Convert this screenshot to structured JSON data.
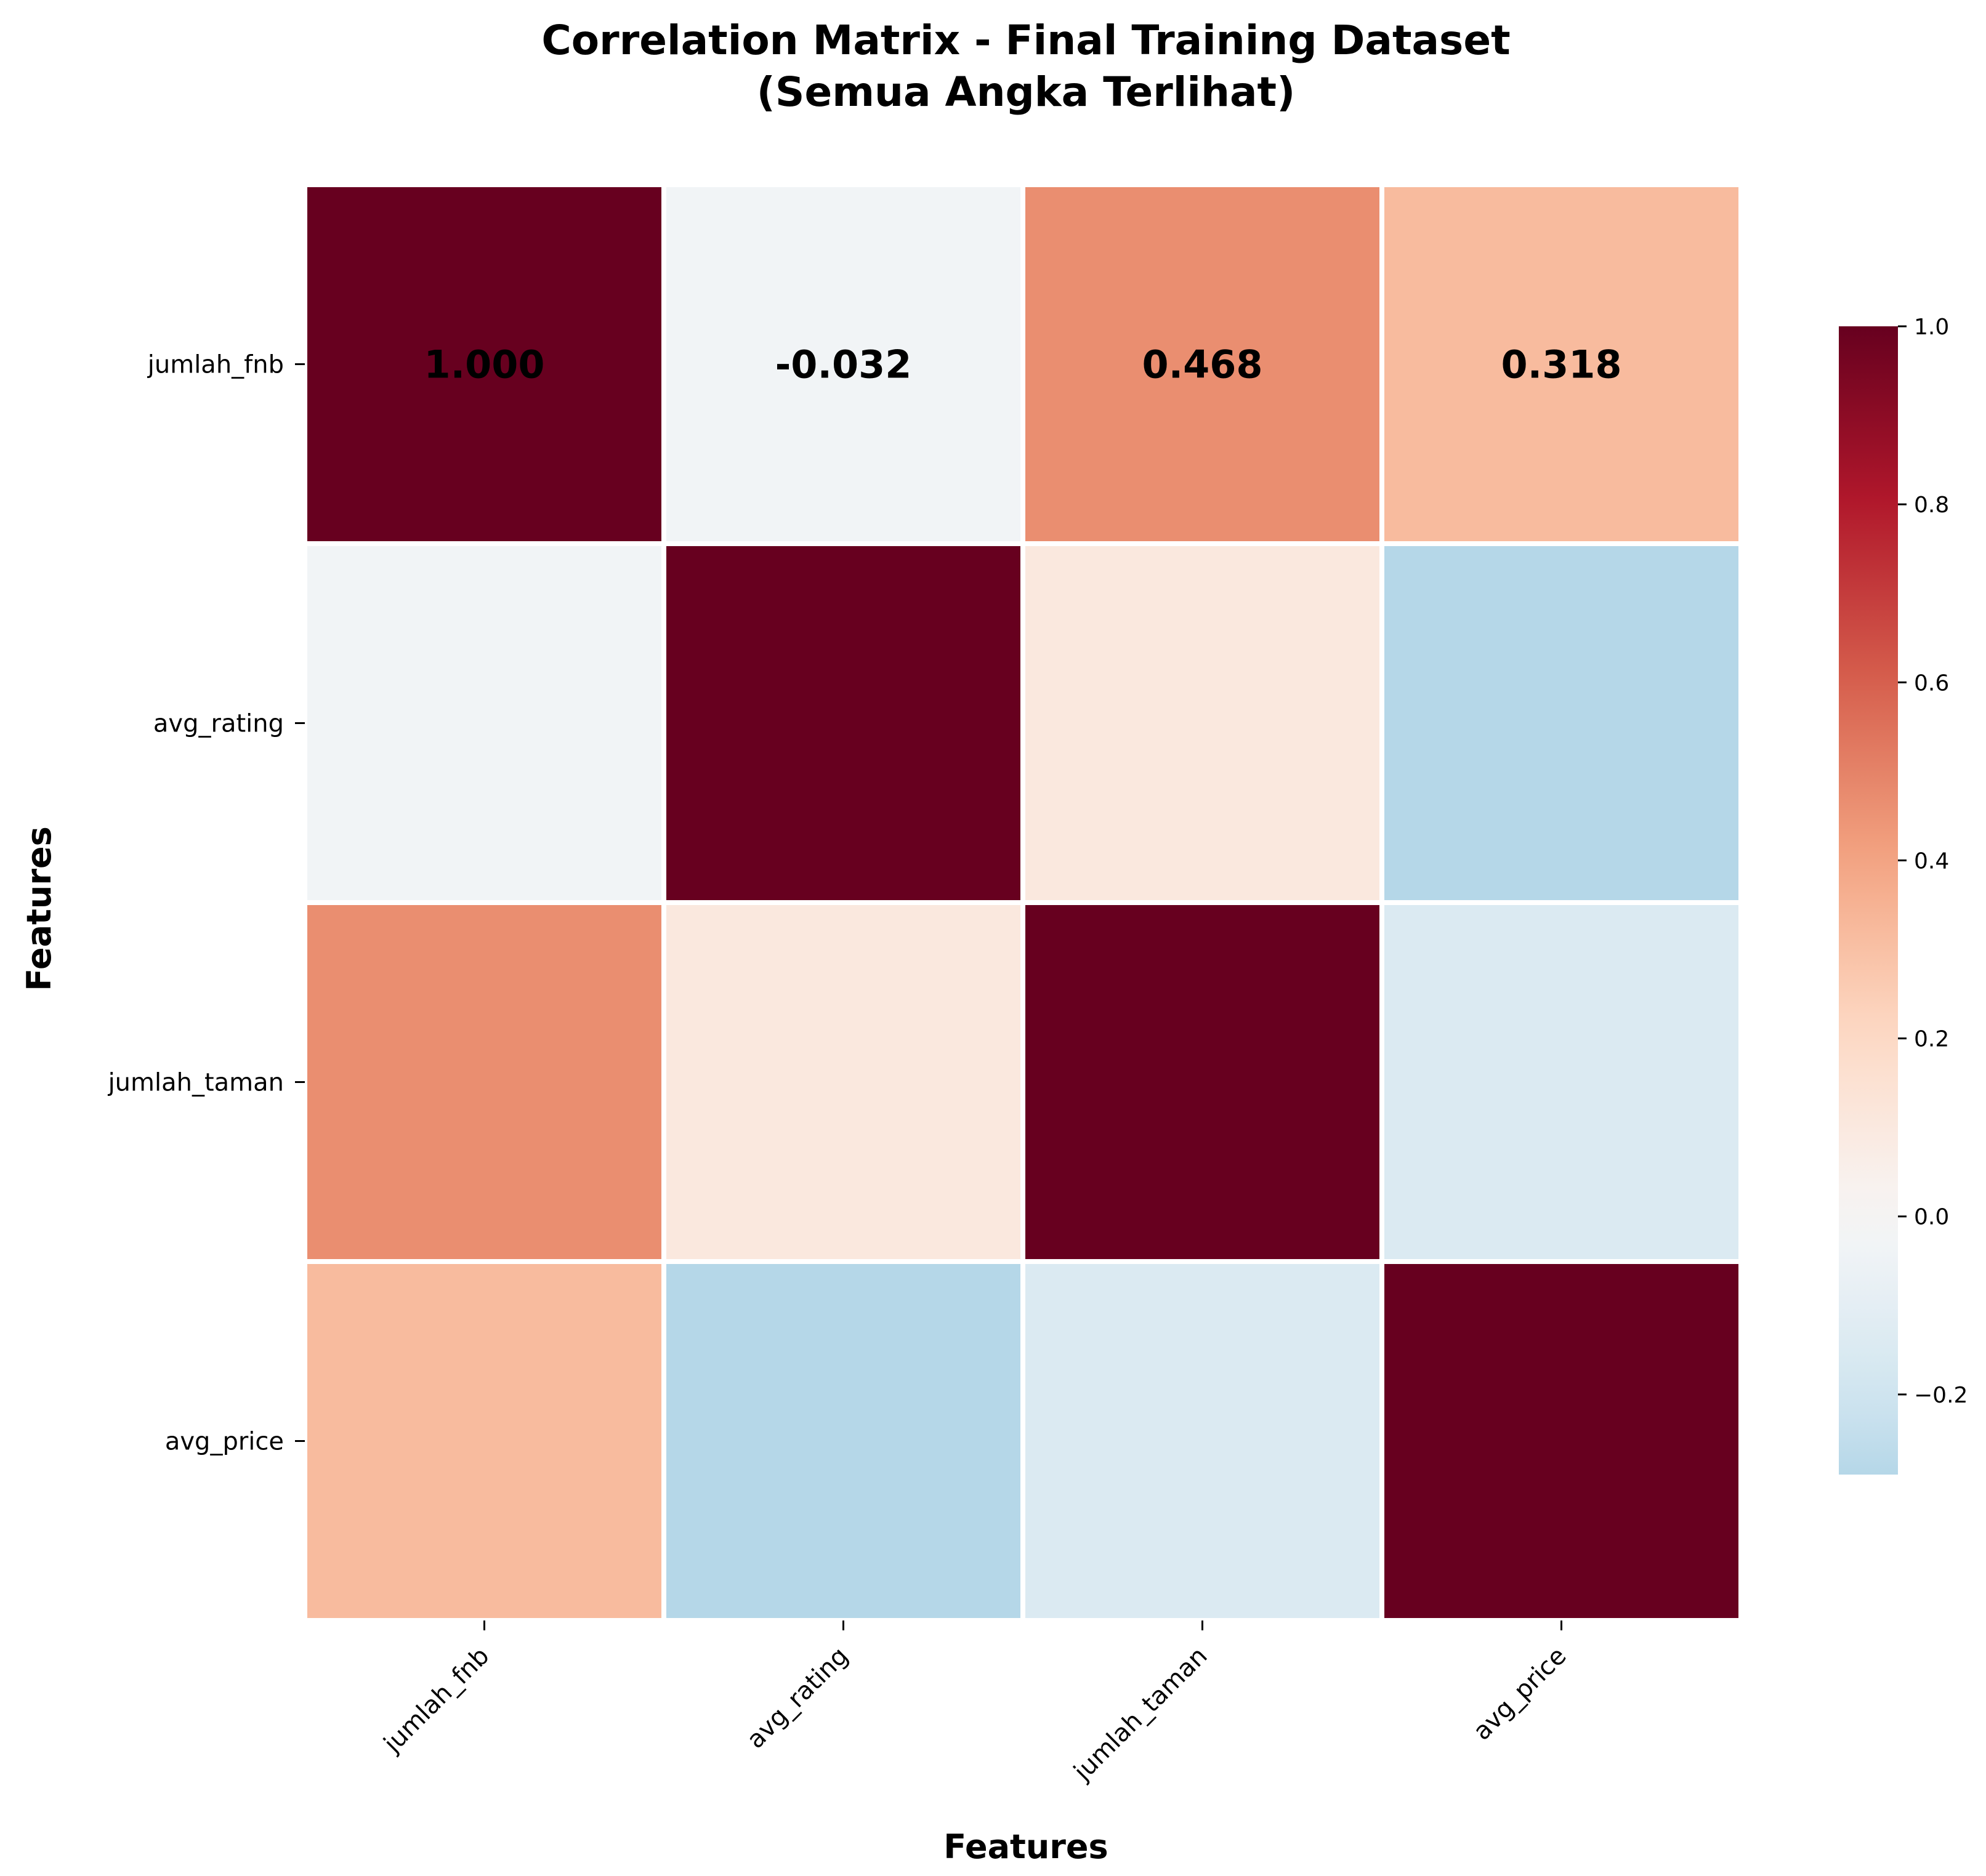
{
  "chart_data": {
    "type": "heatmap",
    "title_line1": "Correlation Matrix - Final Training Dataset",
    "title_line2": "(Semua Angka Terlihat)",
    "xlabel": "Features",
    "ylabel": "Features",
    "categories": [
      "jumlah_fnb",
      "avg_rating",
      "jumlah_taman",
      "avg_price"
    ],
    "matrix": [
      [
        1.0,
        -0.032,
        0.468,
        0.318
      ],
      [
        -0.032,
        1.0,
        0.105,
        -0.29
      ],
      [
        0.468,
        0.105,
        1.0,
        -0.15
      ],
      [
        0.318,
        -0.29,
        -0.15,
        1.0
      ]
    ],
    "annotations": [
      [
        "1.000",
        "-0.032",
        "0.468",
        "0.318"
      ],
      [
        "",
        "",
        "",
        ""
      ],
      [
        "",
        "",
        "",
        ""
      ],
      [
        "",
        "",
        "",
        ""
      ]
    ],
    "colorbar": {
      "colormap": "RdBu_r",
      "vmin": -0.29,
      "vmax": 1.0,
      "center": 0.0,
      "ticks": [
        -0.2,
        0.0,
        0.2,
        0.4,
        0.6,
        0.8,
        1.0
      ],
      "tick_labels": [
        "−0.2",
        "0.0",
        "0.2",
        "0.4",
        "0.6",
        "0.8",
        "1.0"
      ]
    },
    "grid": false,
    "legend": "colorbar-right"
  }
}
